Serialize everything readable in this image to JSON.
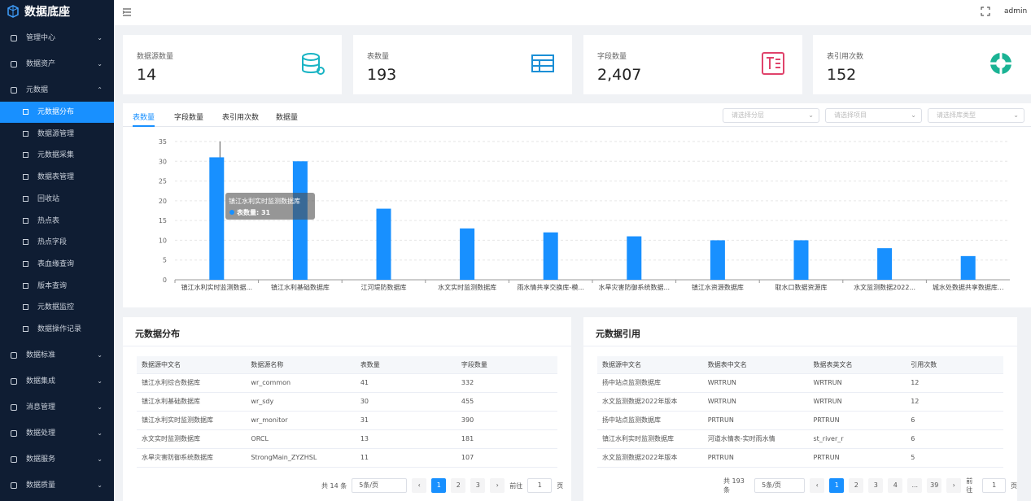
{
  "header": {
    "logo": "数据底座",
    "user": "admin"
  },
  "sidebar": {
    "groups": [
      {
        "label": "管理中心"
      },
      {
        "label": "数据资产"
      },
      {
        "label": "元数据",
        "children": [
          "元数据分布",
          "数据源管理",
          "元数据采集",
          "数据表管理",
          "回收站",
          "热点表",
          "热点字段",
          "表血缘查询",
          "版本查询",
          "元数据监控",
          "数据操作记录"
        ]
      },
      {
        "label": "数据标准"
      },
      {
        "label": "数据集成"
      },
      {
        "label": "消息管理"
      },
      {
        "label": "数据处理"
      },
      {
        "label": "数据服务"
      },
      {
        "label": "数据质量"
      }
    ]
  },
  "stats": [
    {
      "label": "数据源数量",
      "value": "14"
    },
    {
      "label": "表数量",
      "value": "193"
    },
    {
      "label": "字段数量",
      "value": "2,407"
    },
    {
      "label": "表引用次数",
      "value": "152"
    }
  ],
  "tabs": [
    "表数量",
    "字段数量",
    "表引用次数",
    "数据量"
  ],
  "filters": [
    "请选择分层",
    "请选择项目",
    "请选择库类型"
  ],
  "tooltip": {
    "title": "镇江水利实时监测数据库",
    "label": "表数量: 31"
  },
  "chart_data": {
    "type": "bar",
    "categories": [
      "镇江水利实时监测数据...",
      "镇江水利基础数据库",
      "江河堤防数据库",
      "水文实时监测数据库",
      "雨水情共享交换库-模...",
      "水旱灾害防御系统数据...",
      "镇江水资源数据库",
      "取水口数据资源库",
      "水文监测数据2022...",
      "城水处数据共享数据库..."
    ],
    "values": [
      31,
      30,
      18,
      13,
      12,
      11,
      10,
      10,
      8,
      6
    ],
    "color": "#1890ff",
    "ylim": [
      0,
      35
    ],
    "yticks": [
      0,
      5,
      10,
      15,
      20,
      25,
      30,
      35
    ],
    "grid": true
  },
  "tables": [
    {
      "title": "元数据分布",
      "columns": [
        "数据源中文名",
        "数据源名称",
        "表数量",
        "字段数量"
      ],
      "rows": [
        [
          "镇江水利综合数据库",
          "wr_common",
          "41",
          "332"
        ],
        [
          "镇江水利基础数据库",
          "wr_sdy",
          "30",
          "455"
        ],
        [
          "镇江水利实时监测数据库",
          "wr_monitor",
          "31",
          "390"
        ],
        [
          "水文实时监测数据库",
          "ORCL",
          "13",
          "181"
        ],
        [
          "水旱灾害防御系统数据库",
          "StrongMain_ZYZHSL",
          "11",
          "107"
        ]
      ],
      "pagination": {
        "total": "共 14 条",
        "size": "5条/页",
        "pages": [
          "1",
          "2",
          "3"
        ],
        "goto": "前往",
        "page": "1",
        "unit": "页"
      }
    },
    {
      "title": "元数据引用",
      "columns": [
        "数据源中文名",
        "数据表中文名",
        "数据表英文名",
        "引用次数"
      ],
      "rows": [
        [
          "扬中站点监测数据库",
          "WRTRUN",
          "WRTRUN",
          "12"
        ],
        [
          "水文监测数据2022年版本",
          "WRTRUN",
          "WRTRUN",
          "12"
        ],
        [
          "扬中站点监测数据库",
          "PRTRUN",
          "PRTRUN",
          "6"
        ],
        [
          "镇江水利实时监测数据库",
          "河道水情表-实时雨水情",
          "st_river_r",
          "6"
        ],
        [
          "水文监测数据2022年版本",
          "PRTRUN",
          "PRTRUN",
          "5"
        ]
      ],
      "pagination": {
        "total": "共 193 条",
        "size": "5条/页",
        "pages": [
          "1",
          "2",
          "3",
          "4",
          "...",
          "39"
        ],
        "goto": "前往",
        "page": "1",
        "unit": "页"
      }
    }
  ]
}
